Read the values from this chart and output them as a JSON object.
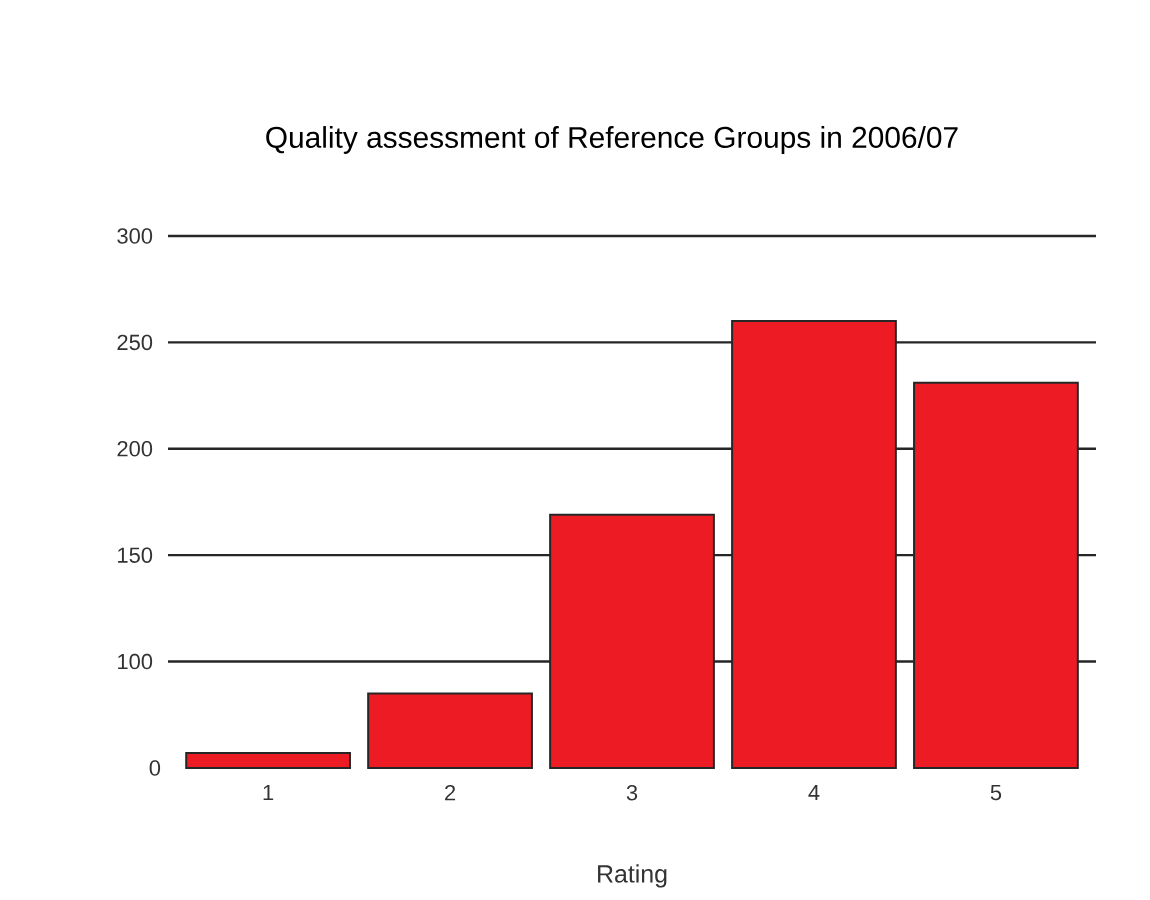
{
  "chart_data": {
    "type": "bar",
    "title": "Quality assessment of Reference Groups in 2006/07",
    "xlabel": "Rating",
    "categories": [
      "1",
      "2",
      "3",
      "4",
      "5"
    ],
    "values": [
      57,
      85,
      169,
      260,
      231
    ],
    "color": "#ed1c24",
    "ylim": [
      50,
      300
    ],
    "yticks": [
      100,
      150,
      200,
      250,
      300
    ],
    "annotations": [
      "0"
    ],
    "grid": "y"
  }
}
